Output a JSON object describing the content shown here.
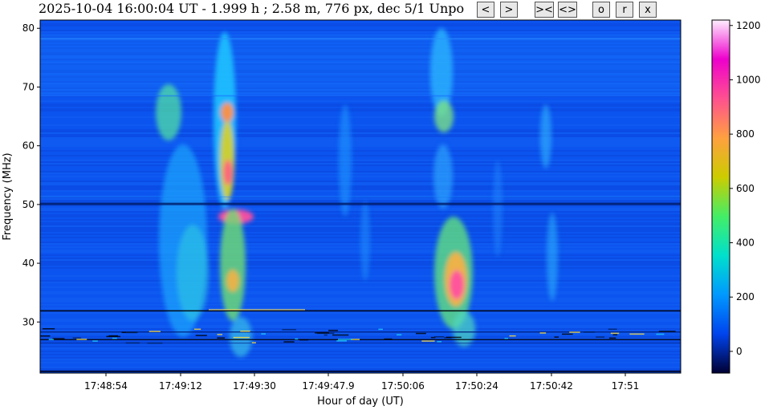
{
  "header": {
    "title": "2025-10-04 16:00:04 UT - 1.999 h ;    2.58 m, 776 px, dec 5/1 Unpo"
  },
  "buttons": {
    "prev": "<",
    "next": ">",
    "zoom_in": "><",
    "zoom_out": "<>",
    "o": "o",
    "r": "r",
    "x": "x"
  },
  "chart_data": {
    "type": "heatmap",
    "title": "",
    "xlabel": "Hour of day (UT)",
    "ylabel": "Frequency (MHz)",
    "x_tick_labels": [
      "17:48:54",
      "17:49:12",
      "17:49:30",
      "17:49:47.9",
      "17:50:06",
      "17:50:24",
      "17:50:42",
      "17:51"
    ],
    "y_ticks": [
      30,
      40,
      50,
      60,
      70,
      80
    ],
    "ylim": [
      21.3,
      81.4
    ],
    "colorbar": {
      "ticks": [
        0,
        200,
        400,
        600,
        800,
        1000,
        1200
      ],
      "range": [
        -80,
        1220
      ],
      "colormap": [
        "#000033",
        "#0044ee",
        "#0099ff",
        "#00e0cc",
        "#44ee66",
        "#cccc00",
        "#ffa040",
        "#ff5090",
        "#ee00cc",
        "#ffeeff"
      ]
    },
    "features": [
      {
        "kind": "burst",
        "x_center_s": 16,
        "f_low": 22,
        "f_high": 80,
        "peak": 1000,
        "note": "strongest burst near 17:49:24"
      },
      {
        "kind": "burst",
        "x_center_s": 73,
        "f_low": 24,
        "f_high": 80,
        "peak": 950,
        "note": "burst near 17:50:21, peak ~37 MHz"
      },
      {
        "kind": "burst",
        "x_center_s": 101,
        "f_low": 30,
        "f_high": 68,
        "peak": 280
      }
    ]
  }
}
